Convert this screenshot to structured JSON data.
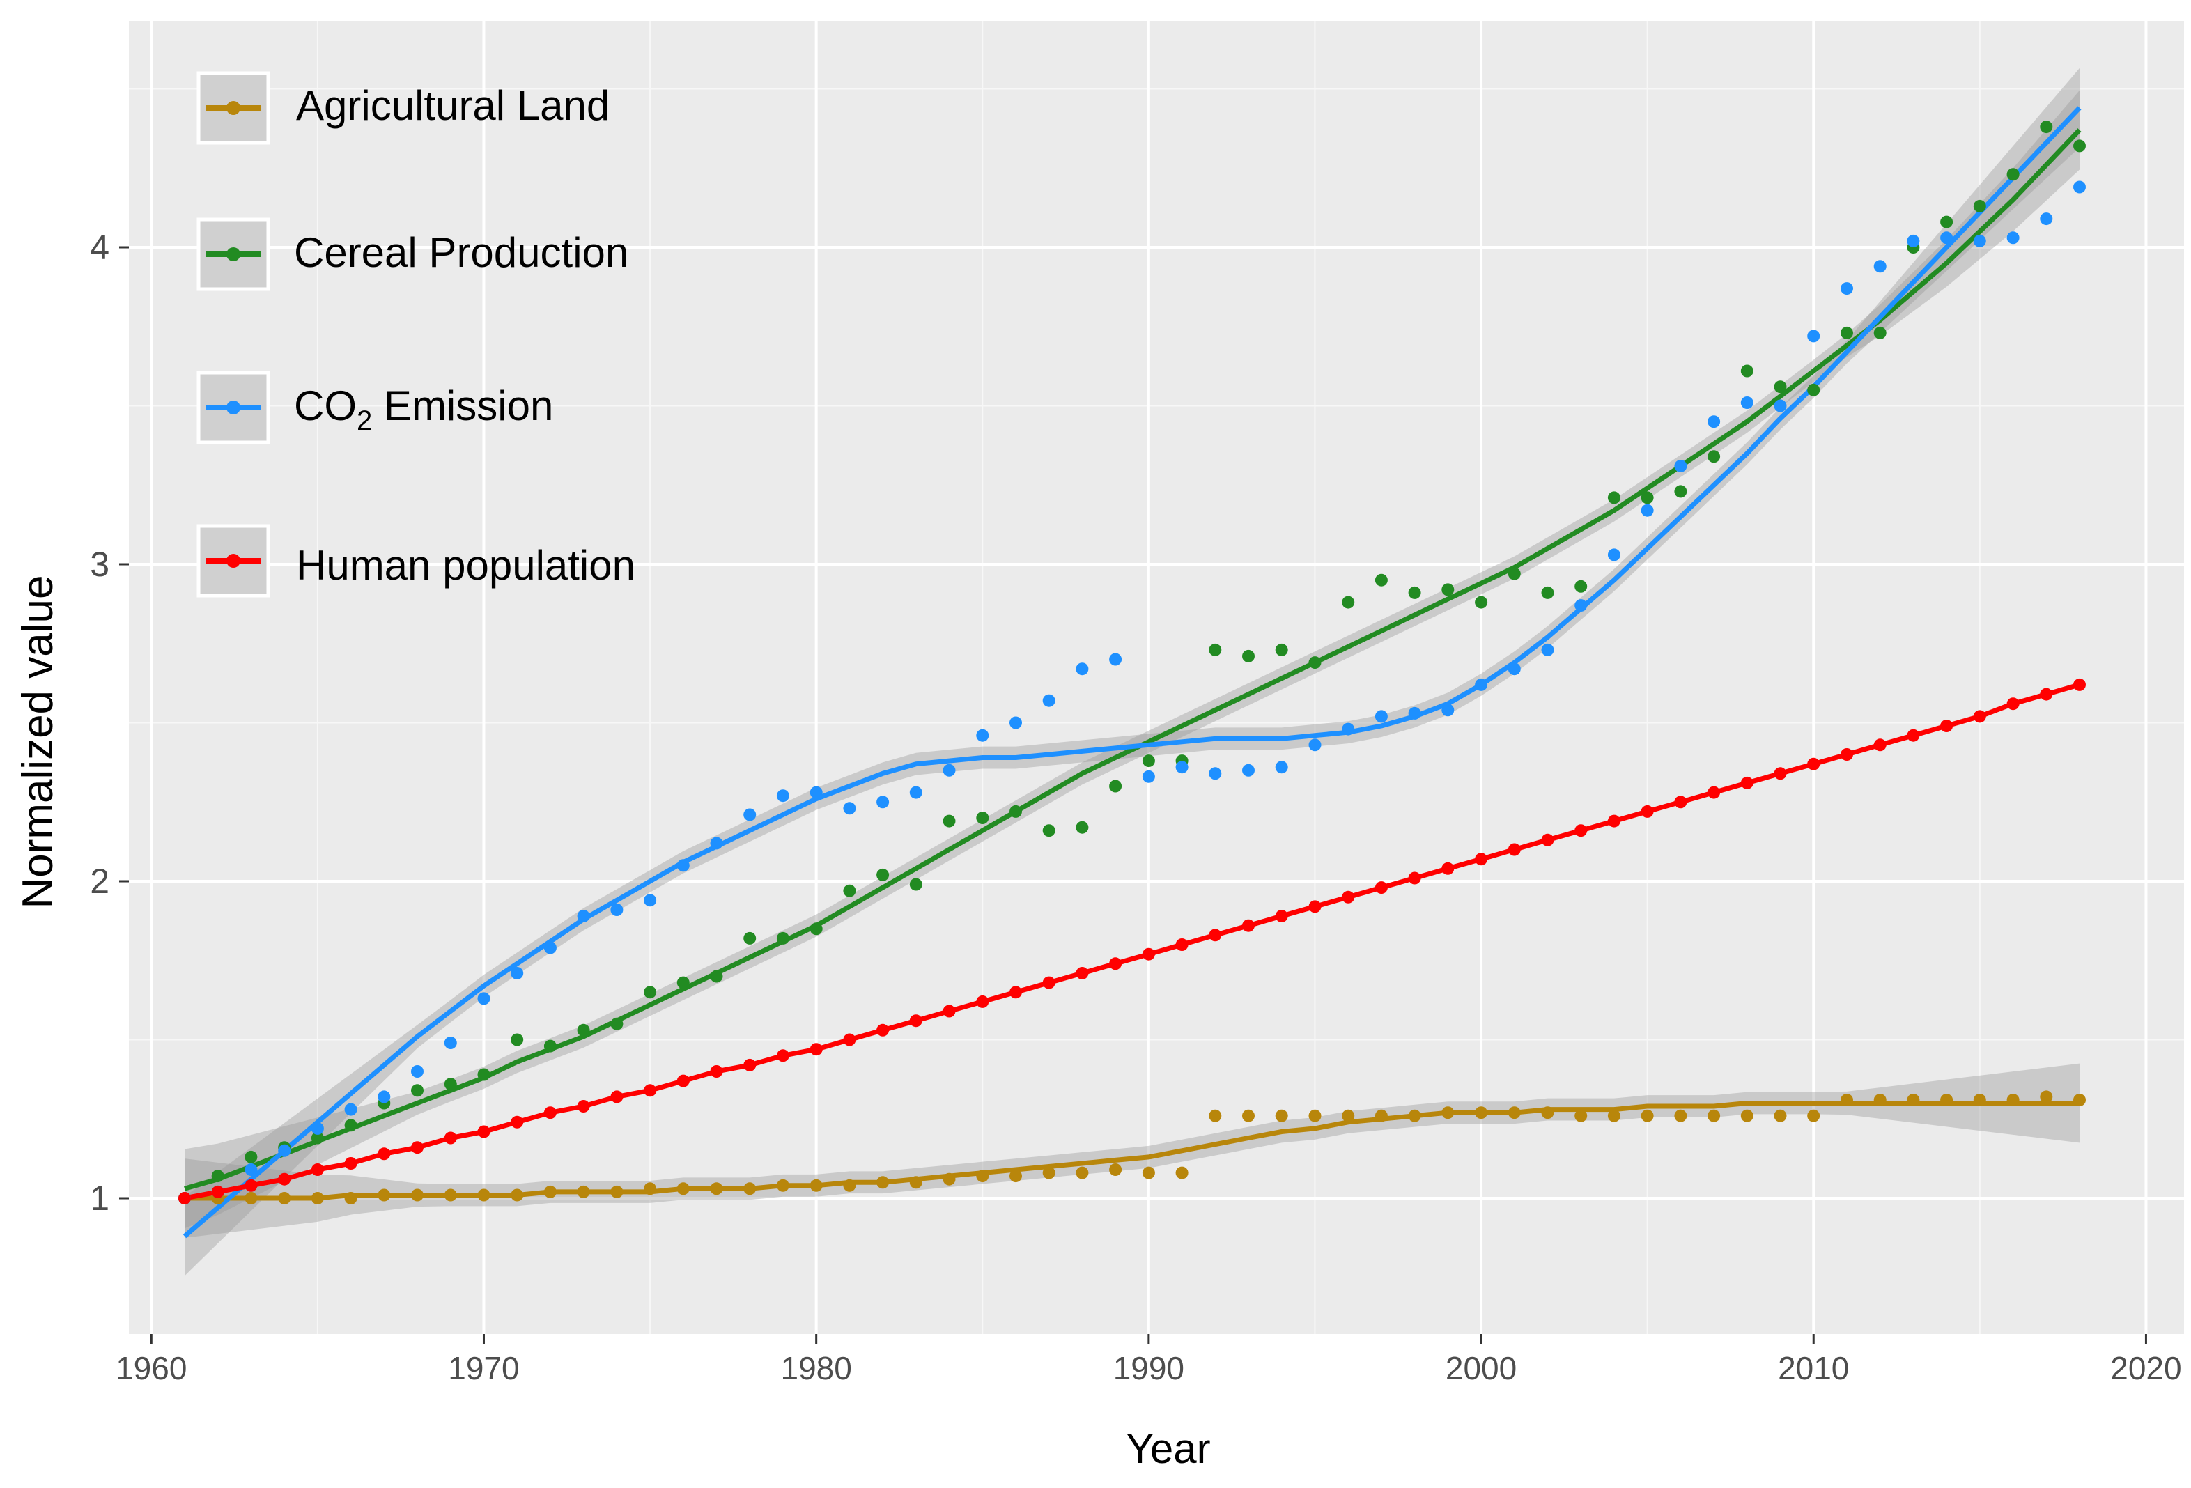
{
  "chart_data": {
    "type": "scatter",
    "title": "",
    "xlabel": "Year",
    "ylabel": "Normalized value",
    "xlim": [
      1960,
      2021
    ],
    "ylim": [
      0.57,
      4.75
    ],
    "x_ticks": [
      1960,
      1970,
      1980,
      1990,
      2000,
      2010,
      2020
    ],
    "y_ticks": [
      1,
      2,
      3,
      4
    ],
    "grid": true,
    "legend_position": "top-left",
    "smooth": "loess with grey confidence band",
    "x": [
      1961,
      1962,
      1963,
      1964,
      1965,
      1966,
      1967,
      1968,
      1969,
      1970,
      1971,
      1972,
      1973,
      1974,
      1975,
      1976,
      1977,
      1978,
      1979,
      1980,
      1981,
      1982,
      1983,
      1984,
      1985,
      1986,
      1987,
      1988,
      1989,
      1990,
      1991,
      1992,
      1993,
      1994,
      1995,
      1996,
      1997,
      1998,
      1999,
      2000,
      2001,
      2002,
      2003,
      2004,
      2005,
      2006,
      2007,
      2008,
      2009,
      2010,
      2011,
      2012,
      2013,
      2014,
      2015,
      2016,
      2017,
      2018
    ],
    "series": [
      {
        "name": "Agricultural Land",
        "color": "#B8860B",
        "values": [
          1.0,
          1.0,
          1.0,
          1.0,
          1.0,
          1.0,
          1.01,
          1.01,
          1.01,
          1.01,
          1.01,
          1.02,
          1.02,
          1.02,
          1.03,
          1.03,
          1.03,
          1.03,
          1.04,
          1.04,
          1.04,
          1.05,
          1.05,
          1.06,
          1.07,
          1.07,
          1.08,
          1.08,
          1.09,
          1.08,
          1.08,
          1.26,
          1.26,
          1.26,
          1.26,
          1.26,
          1.26,
          1.26,
          1.27,
          1.27,
          1.27,
          1.27,
          1.26,
          1.26,
          1.26,
          1.26,
          1.26,
          1.26,
          1.26,
          1.26,
          1.31,
          1.31,
          1.31,
          1.31,
          1.31,
          1.31,
          1.32,
          1.31
        ],
        "smooth": [
          1.0,
          1.0,
          1.0,
          1.0,
          1.0,
          1.01,
          1.01,
          1.01,
          1.01,
          1.01,
          1.01,
          1.02,
          1.02,
          1.02,
          1.02,
          1.03,
          1.03,
          1.03,
          1.04,
          1.04,
          1.05,
          1.05,
          1.06,
          1.07,
          1.08,
          1.09,
          1.1,
          1.11,
          1.12,
          1.13,
          1.15,
          1.17,
          1.19,
          1.21,
          1.22,
          1.24,
          1.25,
          1.26,
          1.27,
          1.27,
          1.27,
          1.28,
          1.28,
          1.28,
          1.29,
          1.29,
          1.29,
          1.3,
          1.3,
          1.3,
          1.3,
          1.3,
          1.3,
          1.3,
          1.3,
          1.3,
          1.3,
          1.3
        ]
      },
      {
        "name": "Cereal Production",
        "color": "#228B22",
        "values": [
          1.0,
          1.07,
          1.13,
          1.16,
          1.19,
          1.23,
          1.3,
          1.34,
          1.36,
          1.39,
          1.5,
          1.48,
          1.53,
          1.55,
          1.65,
          1.68,
          1.7,
          1.82,
          1.82,
          1.85,
          1.97,
          2.02,
          1.99,
          2.19,
          2.2,
          2.22,
          2.16,
          2.17,
          2.3,
          2.38,
          2.38,
          2.73,
          2.71,
          2.73,
          2.69,
          2.88,
          2.95,
          2.91,
          2.92,
          2.88,
          2.97,
          2.91,
          2.93,
          3.21,
          3.21,
          3.23,
          3.34,
          3.61,
          3.56,
          3.55,
          3.73,
          3.73,
          4.0,
          4.08,
          4.13,
          4.23,
          4.38,
          4.32
        ],
        "smooth": [
          1.03,
          1.06,
          1.1,
          1.14,
          1.18,
          1.22,
          1.26,
          1.3,
          1.34,
          1.38,
          1.43,
          1.47,
          1.51,
          1.56,
          1.61,
          1.66,
          1.71,
          1.76,
          1.81,
          1.86,
          1.92,
          1.98,
          2.04,
          2.1,
          2.16,
          2.22,
          2.28,
          2.34,
          2.39,
          2.44,
          2.49,
          2.54,
          2.59,
          2.64,
          2.69,
          2.74,
          2.79,
          2.84,
          2.89,
          2.94,
          2.99,
          3.05,
          3.11,
          3.17,
          3.24,
          3.31,
          3.38,
          3.45,
          3.53,
          3.61,
          3.69,
          3.77,
          3.86,
          3.95,
          4.05,
          4.15,
          4.26,
          4.37
        ]
      },
      {
        "name": "CO₂ Emission",
        "color": "#1E90FF",
        "values": [
          1.0,
          1.02,
          1.09,
          1.15,
          1.22,
          1.28,
          1.32,
          1.4,
          1.49,
          1.63,
          1.71,
          1.79,
          1.89,
          1.91,
          1.94,
          2.05,
          2.12,
          2.21,
          2.27,
          2.28,
          2.23,
          2.25,
          2.28,
          2.35,
          2.46,
          2.5,
          2.57,
          2.67,
          2.7,
          2.33,
          2.36,
          2.34,
          2.35,
          2.36,
          2.43,
          2.48,
          2.52,
          2.53,
          2.54,
          2.62,
          2.67,
          2.73,
          2.87,
          3.03,
          3.17,
          3.31,
          3.45,
          3.51,
          3.5,
          3.72,
          3.87,
          3.94,
          4.02,
          4.03,
          4.02,
          4.03,
          4.09,
          4.19
        ],
        "smooth": [
          0.88,
          0.97,
          1.06,
          1.15,
          1.24,
          1.33,
          1.42,
          1.51,
          1.59,
          1.67,
          1.74,
          1.81,
          1.88,
          1.94,
          2.0,
          2.06,
          2.11,
          2.16,
          2.21,
          2.26,
          2.3,
          2.34,
          2.37,
          2.38,
          2.39,
          2.39,
          2.4,
          2.41,
          2.42,
          2.43,
          2.44,
          2.45,
          2.45,
          2.45,
          2.46,
          2.47,
          2.49,
          2.52,
          2.56,
          2.62,
          2.69,
          2.77,
          2.86,
          2.95,
          3.05,
          3.15,
          3.25,
          3.35,
          3.46,
          3.56,
          3.67,
          3.78,
          3.89,
          4.0,
          4.11,
          4.22,
          4.33,
          4.44
        ]
      },
      {
        "name": "Human population",
        "color": "#FF0000",
        "values": [
          1.0,
          1.02,
          1.04,
          1.06,
          1.09,
          1.11,
          1.14,
          1.16,
          1.19,
          1.21,
          1.24,
          1.27,
          1.29,
          1.32,
          1.34,
          1.37,
          1.4,
          1.42,
          1.45,
          1.47,
          1.5,
          1.53,
          1.56,
          1.59,
          1.62,
          1.65,
          1.68,
          1.71,
          1.74,
          1.77,
          1.8,
          1.83,
          1.86,
          1.89,
          1.92,
          1.95,
          1.98,
          2.01,
          2.04,
          2.07,
          2.1,
          2.13,
          2.16,
          2.19,
          2.22,
          2.25,
          2.28,
          2.31,
          2.34,
          2.37,
          2.4,
          2.43,
          2.46,
          2.49,
          2.52,
          2.56,
          2.59,
          2.62
        ],
        "smooth": [
          1.0,
          1.02,
          1.04,
          1.06,
          1.09,
          1.11,
          1.14,
          1.16,
          1.19,
          1.21,
          1.24,
          1.27,
          1.29,
          1.32,
          1.34,
          1.37,
          1.4,
          1.42,
          1.45,
          1.47,
          1.5,
          1.53,
          1.56,
          1.59,
          1.62,
          1.65,
          1.68,
          1.71,
          1.74,
          1.77,
          1.8,
          1.83,
          1.86,
          1.89,
          1.92,
          1.95,
          1.98,
          2.01,
          2.04,
          2.07,
          2.1,
          2.13,
          2.16,
          2.19,
          2.22,
          2.25,
          2.28,
          2.31,
          2.34,
          2.37,
          2.4,
          2.43,
          2.46,
          2.49,
          2.52,
          2.56,
          2.59,
          2.62
        ]
      }
    ]
  },
  "legend": {
    "agricultural_land": "Agricultural Land",
    "cereal_production": "Cereal Production",
    "co2_prefix": "CO",
    "co2_subscript": "2",
    "co2_suffix": " Emission",
    "human_population": "Human population"
  }
}
